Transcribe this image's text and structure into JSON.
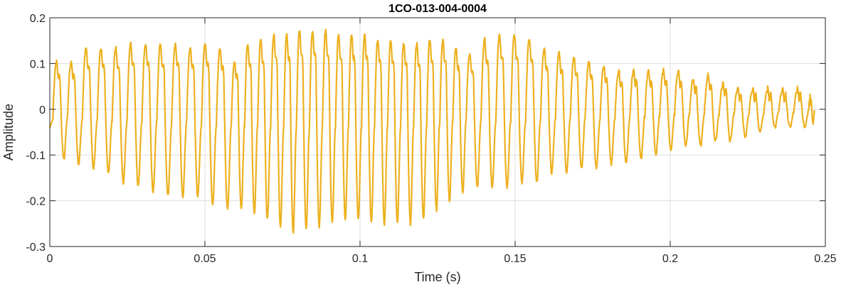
{
  "chart_data": {
    "type": "line",
    "title": "1CO-013-004-0004",
    "xlabel": "Time (s)",
    "ylabel": "Amplitude",
    "xlim": [
      0,
      0.25
    ],
    "ylim": [
      -0.3,
      0.2
    ],
    "xticks": [
      0,
      0.05,
      0.1,
      0.15,
      0.2,
      0.25
    ],
    "xtick_labels": [
      "0",
      "0.05",
      "0.1",
      "0.15",
      "0.2",
      "0.25"
    ],
    "yticks": [
      -0.3,
      -0.2,
      -0.1,
      0,
      0.1,
      0.2
    ],
    "ytick_labels": [
      "-0.3",
      "-0.2",
      "-0.1",
      "0",
      "0.1",
      "0.2"
    ],
    "grid": true,
    "line_color": "#EDB120",
    "series": [
      {
        "x_start": 0,
        "x_end": 0.2465,
        "cycle_starts": [
          0.001,
          0.0057,
          0.0105,
          0.0153,
          0.0201,
          0.0249,
          0.0297,
          0.0345,
          0.0393,
          0.0441,
          0.0489,
          0.0537,
          0.0585,
          0.0628,
          0.067,
          0.0712,
          0.0754,
          0.0795,
          0.0837,
          0.0879,
          0.0921,
          0.0963,
          0.1005,
          0.1047,
          0.1089,
          0.1131,
          0.1173,
          0.1215,
          0.1257,
          0.1299,
          0.1342,
          0.139,
          0.1438,
          0.1486,
          0.1534,
          0.1582,
          0.163,
          0.1678,
          0.1726,
          0.1774,
          0.1822,
          0.187,
          0.1918,
          0.1966,
          0.2014,
          0.2062,
          0.211,
          0.2158,
          0.2206,
          0.2254,
          0.2302,
          0.235,
          0.2398,
          0.2446
        ],
        "peaks": [
          0.1,
          0.1,
          0.13,
          0.13,
          0.13,
          0.14,
          0.14,
          0.14,
          0.14,
          0.13,
          0.14,
          0.13,
          0.1,
          0.14,
          0.15,
          0.16,
          0.16,
          0.17,
          0.17,
          0.17,
          0.16,
          0.16,
          0.16,
          0.15,
          0.15,
          0.14,
          0.14,
          0.15,
          0.15,
          0.13,
          0.12,
          0.15,
          0.16,
          0.16,
          0.15,
          0.13,
          0.12,
          0.11,
          0.1,
          0.09,
          0.08,
          0.08,
          0.08,
          0.08,
          0.08,
          0.06,
          0.07,
          0.05,
          0.04,
          0.04,
          0.04,
          0.04,
          0.04,
          0.02
        ],
        "troughs": [
          -0.11,
          -0.12,
          -0.13,
          -0.14,
          -0.16,
          -0.17,
          -0.18,
          -0.19,
          -0.19,
          -0.19,
          -0.21,
          -0.22,
          -0.22,
          -0.23,
          -0.24,
          -0.26,
          -0.27,
          -0.26,
          -0.26,
          -0.25,
          -0.24,
          -0.24,
          -0.25,
          -0.25,
          -0.25,
          -0.25,
          -0.24,
          -0.22,
          -0.2,
          -0.18,
          -0.17,
          -0.17,
          -0.17,
          -0.16,
          -0.16,
          -0.14,
          -0.14,
          -0.13,
          -0.13,
          -0.12,
          -0.12,
          -0.11,
          -0.1,
          -0.09,
          -0.08,
          -0.08,
          -0.07,
          -0.07,
          -0.06,
          -0.05,
          -0.04,
          -0.04,
          -0.04,
          -0.03
        ]
      }
    ]
  }
}
